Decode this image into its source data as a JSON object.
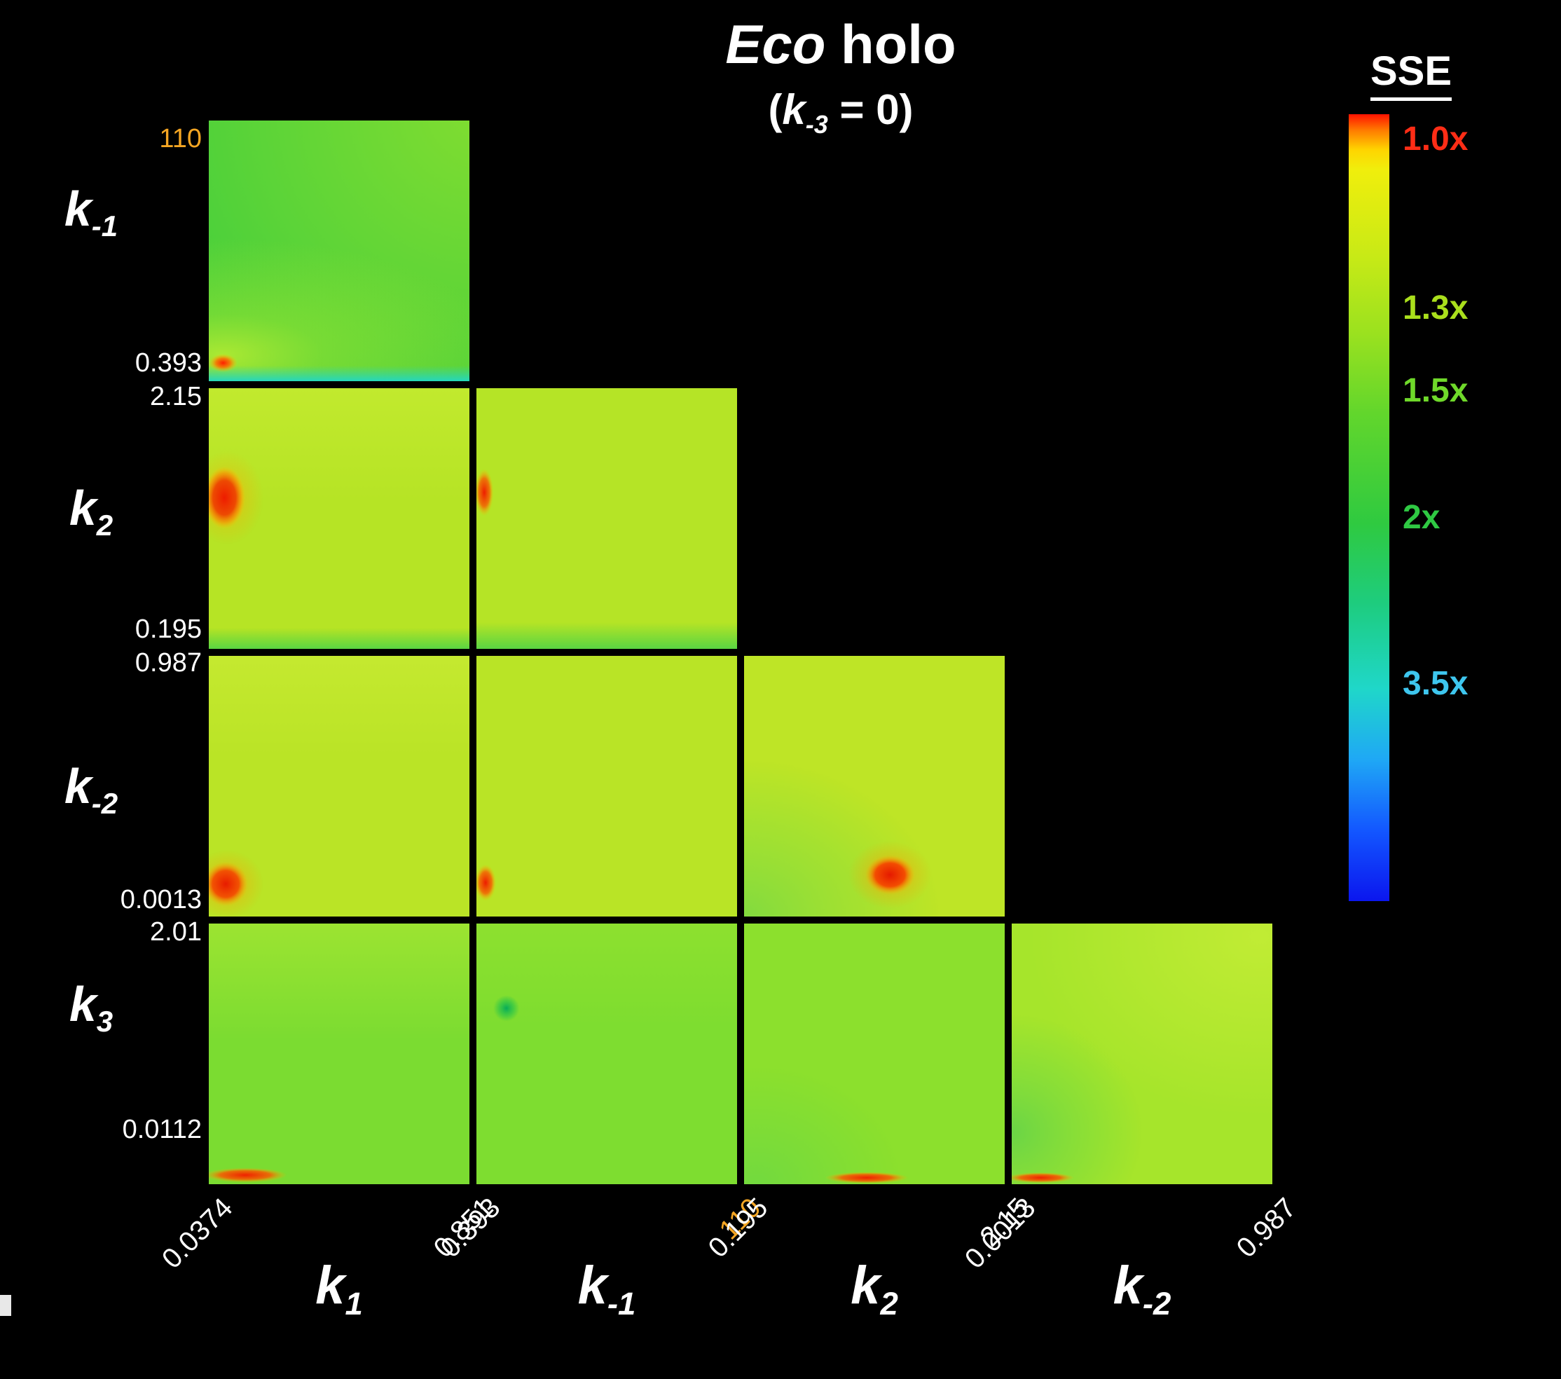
{
  "figure": {
    "title": {
      "italic": "Eco",
      "rest": " holo"
    },
    "subtitle": {
      "open": "(",
      "k": "k",
      "sub": "-3",
      "close": " = 0)"
    }
  },
  "colorbar": {
    "title": "SSE",
    "ticks": [
      {
        "label": "1.0x",
        "pos": 0.032,
        "color": "#ff2d16"
      },
      {
        "label": "1.3x",
        "pos": 0.247,
        "color": "#aadf1c"
      },
      {
        "label": "1.5x",
        "pos": 0.352,
        "color": "#6fd92a"
      },
      {
        "label": "2x",
        "pos": 0.513,
        "color": "#2fc943"
      },
      {
        "label": "3.5x",
        "pos": 0.724,
        "color": "#3ec6ee"
      }
    ],
    "gradient": [
      [
        0.0,
        "#ff1200"
      ],
      [
        0.02,
        "#ff7a00"
      ],
      [
        0.045,
        "#ffd400"
      ],
      [
        0.07,
        "#f0ee0c"
      ],
      [
        0.18,
        "#c8ea16"
      ],
      [
        0.28,
        "#9ae11f"
      ],
      [
        0.38,
        "#62d62c"
      ],
      [
        0.52,
        "#2fca40"
      ],
      [
        0.62,
        "#1ecc7d"
      ],
      [
        0.73,
        "#1fd7c9"
      ],
      [
        0.82,
        "#1fa8f5"
      ],
      [
        0.91,
        "#1357ff"
      ],
      [
        1.0,
        "#0b16ee"
      ]
    ]
  },
  "chart_data": {
    "type": "heatmap",
    "title": "Eco holo (k-3 = 0)",
    "layout": "lower-triangular pairwise parameter corner plot, 4 rows x 4 cols",
    "colorbar_label": "SSE",
    "sse_scale_ticks": [
      "1.0x",
      "1.3x",
      "1.5x",
      "2x",
      "3.5x"
    ],
    "parameters": {
      "k1": {
        "min": 0.0374,
        "max": 0.851
      },
      "k-1": {
        "min": 0.393,
        "max": 110
      },
      "k2": {
        "min": 0.195,
        "max": 2.15
      },
      "k-2": {
        "min": 0.0013,
        "max": 0.987
      },
      "k3": {
        "min": 0.0112,
        "max": 2.01
      }
    },
    "rows": [
      {
        "name": "k-1",
        "base": "k",
        "sub": "-1",
        "ticks": {
          "top": {
            "text": "110",
            "color": "#f5a623"
          },
          "bottom": {
            "text": "0.393",
            "color": "#ffffff"
          }
        }
      },
      {
        "name": "k2",
        "base": "k",
        "sub": "2",
        "ticks": {
          "top": {
            "text": "2.15",
            "color": "#ffffff"
          },
          "bottom": {
            "text": "0.195",
            "color": "#ffffff"
          }
        }
      },
      {
        "name": "k-2",
        "base": "k",
        "sub": "-2",
        "ticks": {
          "top": {
            "text": "0.987",
            "color": "#ffffff"
          },
          "bottom": {
            "text": "0.0013",
            "color": "#ffffff"
          }
        }
      },
      {
        "name": "k3",
        "base": "k",
        "sub": "3",
        "ticks": {
          "top": {
            "text": "2.01",
            "color": "#ffffff"
          },
          "bottom": {
            "text": "0.0112",
            "color": "#ffffff"
          }
        }
      }
    ],
    "cols": [
      {
        "name": "k1",
        "base": "k",
        "sub": "1",
        "ticks": {
          "left": {
            "text": "0.0374",
            "color": "#ffffff"
          },
          "right": {
            "text": "0.851",
            "color": "#ffffff"
          }
        }
      },
      {
        "name": "k-1",
        "base": "k",
        "sub": "-1",
        "ticks": {
          "left": {
            "text": "0.393",
            "color": "#ffffff"
          },
          "right": {
            "text": "110",
            "color": "#f5a623"
          }
        }
      },
      {
        "name": "k2",
        "base": "k",
        "sub": "2",
        "ticks": {
          "left": {
            "text": "0.195",
            "color": "#ffffff"
          },
          "right": {
            "text": "2.15",
            "color": "#ffffff"
          }
        }
      },
      {
        "name": "k-2",
        "base": "k",
        "sub": "-2",
        "ticks": {
          "left": {
            "text": "0.0013",
            "color": "#ffffff"
          },
          "right": {
            "text": "0.987",
            "color": "#ffffff"
          }
        }
      }
    ],
    "panels": [
      {
        "row": 0,
        "col": 0,
        "x_param": "k1",
        "y_param": "k-1",
        "x_range": [
          0.0374,
          0.851
        ],
        "y_range": [
          0.393,
          110
        ],
        "highlight": "red low-SSE minimum at low k1 / low k-1; light yellow-green fan toward upper right; cyan high-SSE strip along bottom edge",
        "layers": [
          {
            "type": "fill",
            "color": "#3ecd3e"
          },
          {
            "type": "radial",
            "cx": 1.05,
            "cy": -0.05,
            "rx": 1.5,
            "ry": 1.5,
            "stops": [
              [
                0,
                "rgba(174,232,40,0.60)"
              ],
              [
                0.6,
                "rgba(174,232,40,0.25)"
              ],
              [
                1,
                "rgba(174,232,40,0)"
              ]
            ]
          },
          {
            "type": "radial",
            "cx": 0.05,
            "cy": 0.9,
            "rx": 1.1,
            "ry": 0.45,
            "stops": [
              [
                0,
                "rgba(190,238,50,0.85)"
              ],
              [
                0.35,
                "rgba(180,235,45,0.40)"
              ],
              [
                1,
                "rgba(180,235,45,0)"
              ]
            ]
          },
          {
            "type": "linear",
            "x1": 0,
            "y1": 1,
            "x2": 0,
            "y2": 0.94,
            "stops": [
              [
                0,
                "rgba(34,216,196,0.95)"
              ],
              [
                0.5,
                "rgba(34,216,196,0.45)"
              ],
              [
                1,
                "rgba(34,216,196,0)"
              ]
            ]
          },
          {
            "type": "radial",
            "cx": 0.055,
            "cy": 0.93,
            "rx": 0.055,
            "ry": 0.035,
            "stops": [
              [
                0,
                "#ff1c00"
              ],
              [
                0.5,
                "rgba(255,110,0,0.85)"
              ],
              [
                1,
                "rgba(255,200,0,0)"
              ]
            ]
          }
        ]
      },
      {
        "row": 1,
        "col": 0,
        "x_param": "k1",
        "y_param": "k2",
        "x_range": [
          0.0374,
          0.851
        ],
        "y_range": [
          0.195,
          2.15
        ],
        "highlight": "red low-SSE blob at low k1 / mid k2; green band along bottom edge",
        "layers": [
          {
            "type": "fill",
            "color": "#b6e425"
          },
          {
            "type": "linear",
            "x1": 0,
            "y1": 0,
            "x2": 0,
            "y2": 1,
            "stops": [
              [
                0,
                "rgba(205,240,55,0.50)"
              ],
              [
                0.45,
                "rgba(205,240,55,0)"
              ],
              [
                0.92,
                "rgba(80,212,70,0)"
              ],
              [
                1,
                "rgba(80,212,70,0.9)"
              ]
            ]
          },
          {
            "type": "radial",
            "cx": 0.07,
            "cy": 0.42,
            "rx": 0.14,
            "ry": 0.18,
            "stops": [
              [
                0,
                "rgba(255,170,0,0.60)"
              ],
              [
                1,
                "rgba(255,170,0,0)"
              ]
            ]
          },
          {
            "type": "radial",
            "cx": 0.06,
            "cy": 0.42,
            "rx": 0.08,
            "ry": 0.12,
            "stops": [
              [
                0,
                "#ee1c00"
              ],
              [
                0.55,
                "rgba(240,60,0,0.9)"
              ],
              [
                0.8,
                "rgba(255,140,0,0.6)"
              ],
              [
                1,
                "rgba(255,200,0,0)"
              ]
            ]
          }
        ]
      },
      {
        "row": 1,
        "col": 1,
        "x_param": "k-1",
        "y_param": "k2",
        "x_range": [
          0.393,
          110
        ],
        "y_range": [
          0.195,
          2.15
        ],
        "highlight": "narrow red low-SSE streak at low k-1 / mid k2; green band along bottom edge",
        "layers": [
          {
            "type": "fill",
            "color": "#b5e426"
          },
          {
            "type": "linear",
            "x1": 0,
            "y1": 0.9,
            "x2": 0,
            "y2": 1,
            "stops": [
              [
                0,
                "rgba(80,212,70,0)"
              ],
              [
                1,
                "rgba(80,212,70,0.9)"
              ]
            ]
          },
          {
            "type": "radial",
            "cx": 0.03,
            "cy": 0.4,
            "rx": 0.035,
            "ry": 0.09,
            "stops": [
              [
                0,
                "#ee1c00"
              ],
              [
                0.6,
                "rgba(250,90,0,0.8)"
              ],
              [
                1,
                "rgba(255,190,0,0)"
              ]
            ]
          }
        ]
      },
      {
        "row": 2,
        "col": 0,
        "x_param": "k1",
        "y_param": "k-2",
        "x_range": [
          0.0374,
          0.851
        ],
        "y_range": [
          0.0013,
          0.987
        ],
        "highlight": "red low-SSE blob at low k1 / low k-2",
        "layers": [
          {
            "type": "fill",
            "color": "#bae426"
          },
          {
            "type": "linear",
            "x1": 0,
            "y1": 0,
            "x2": 0,
            "y2": 1,
            "stops": [
              [
                0,
                "rgba(210,240,60,0.45)"
              ],
              [
                0.4,
                "rgba(210,240,60,0)"
              ],
              [
                1,
                "rgba(0,0,0,0)"
              ]
            ]
          },
          {
            "type": "radial",
            "cx": 0.07,
            "cy": 0.875,
            "rx": 0.14,
            "ry": 0.13,
            "stops": [
              [
                0,
                "rgba(255,160,0,0.65)"
              ],
              [
                1,
                "rgba(255,160,0,0)"
              ]
            ]
          },
          {
            "type": "radial",
            "cx": 0.065,
            "cy": 0.875,
            "rx": 0.085,
            "ry": 0.085,
            "stops": [
              [
                0,
                "#e81c00"
              ],
              [
                0.6,
                "rgba(245,70,0,0.9)"
              ],
              [
                1,
                "rgba(255,180,0,0)"
              ]
            ]
          }
        ]
      },
      {
        "row": 2,
        "col": 1,
        "x_param": "k-1",
        "y_param": "k-2",
        "x_range": [
          0.393,
          110
        ],
        "y_range": [
          0.0013,
          0.987
        ],
        "highlight": "small red low-SSE spot at low k-1 / low k-2",
        "layers": [
          {
            "type": "fill",
            "color": "#b9e426"
          },
          {
            "type": "radial",
            "cx": 0.035,
            "cy": 0.87,
            "rx": 0.04,
            "ry": 0.07,
            "stops": [
              [
                0,
                "#ee1c00"
              ],
              [
                0.6,
                "rgba(250,90,0,0.8)"
              ],
              [
                1,
                "rgba(255,190,0,0)"
              ]
            ]
          }
        ]
      },
      {
        "row": 2,
        "col": 2,
        "x_param": "k2",
        "y_param": "k-2",
        "x_range": [
          0.195,
          2.15
        ],
        "y_range": [
          0.0013,
          0.987
        ],
        "highlight": "red low-SSE blob at mid k2 / low k-2; greener wash in lower-left corner",
        "layers": [
          {
            "type": "fill",
            "color": "#bee526"
          },
          {
            "type": "radial",
            "cx": 0.0,
            "cy": 1.0,
            "rx": 0.75,
            "ry": 0.6,
            "stops": [
              [
                0,
                "rgba(90,212,80,0.6)"
              ],
              [
                0.6,
                "rgba(110,218,70,0.3)"
              ],
              [
                1,
                "rgba(110,218,70,0)"
              ]
            ]
          },
          {
            "type": "radial",
            "cx": 0.56,
            "cy": 0.84,
            "rx": 0.16,
            "ry": 0.13,
            "stops": [
              [
                0,
                "rgba(255,160,0,0.7)"
              ],
              [
                1,
                "rgba(255,160,0,0)"
              ]
            ]
          },
          {
            "type": "radial",
            "cx": 0.56,
            "cy": 0.84,
            "rx": 0.095,
            "ry": 0.075,
            "stops": [
              [
                0,
                "#e61a00"
              ],
              [
                0.6,
                "rgba(245,70,0,0.95)"
              ],
              [
                1,
                "rgba(255,180,0,0)"
              ]
            ]
          }
        ]
      },
      {
        "row": 3,
        "col": 0,
        "x_param": "k1",
        "y_param": "k3",
        "x_range": [
          0.0374,
          0.851
        ],
        "y_range": [
          0.0112,
          2.01
        ],
        "highlight": "thin red low-SSE strip at low k3 along low k1",
        "layers": [
          {
            "type": "fill",
            "color": "#7bdc31"
          },
          {
            "type": "linear",
            "x1": 0,
            "y1": 0,
            "x2": 0,
            "y2": 1,
            "stops": [
              [
                0,
                "rgba(190,236,50,0.5)"
              ],
              [
                0.45,
                "rgba(190,236,50,0)"
              ],
              [
                1,
                "rgba(0,0,0,0)"
              ]
            ]
          },
          {
            "type": "radial",
            "cx": 0.14,
            "cy": 0.965,
            "rx": 0.16,
            "ry": 0.028,
            "stops": [
              [
                0,
                "#f02000"
              ],
              [
                0.6,
                "rgba(250,90,0,0.85)"
              ],
              [
                1,
                "rgba(255,190,0,0)"
              ]
            ]
          }
        ]
      },
      {
        "row": 3,
        "col": 1,
        "x_param": "k-1",
        "y_param": "k3",
        "x_range": [
          0.393,
          110
        ],
        "y_range": [
          0.0112,
          2.01
        ],
        "highlight": "dark-green spot at low k-1 / upper-mid k3",
        "layers": [
          {
            "type": "fill",
            "color": "#7edd30"
          },
          {
            "type": "linear",
            "x1": 0,
            "y1": 0,
            "x2": 0,
            "y2": 1,
            "stops": [
              [
                0,
                "rgba(170,232,45,0.35)"
              ],
              [
                0.4,
                "rgba(170,232,45,0)"
              ],
              [
                1,
                "rgba(0,0,0,0)"
              ]
            ]
          },
          {
            "type": "radial",
            "cx": 0.115,
            "cy": 0.325,
            "rx": 0.05,
            "ry": 0.05,
            "stops": [
              [
                0,
                "rgba(0,168,92,0.95)"
              ],
              [
                0.55,
                "rgba(20,190,80,0.55)"
              ],
              [
                1,
                "rgba(20,190,80,0)"
              ]
            ]
          }
        ]
      },
      {
        "row": 3,
        "col": 2,
        "x_param": "k2",
        "y_param": "k3",
        "x_range": [
          0.195,
          2.15
        ],
        "y_range": [
          0.0112,
          2.01
        ],
        "highlight": "thin red low-SSE strip at low k3 / mid k2; greener lower-left",
        "layers": [
          {
            "type": "fill",
            "color": "#8ce02d"
          },
          {
            "type": "radial",
            "cx": 0.05,
            "cy": 1.0,
            "rx": 0.55,
            "ry": 0.45,
            "stops": [
              [
                0,
                "rgba(90,212,80,0.5)"
              ],
              [
                1,
                "rgba(90,212,80,0)"
              ]
            ]
          },
          {
            "type": "radial",
            "cx": 0.47,
            "cy": 0.975,
            "rx": 0.16,
            "ry": 0.022,
            "stops": [
              [
                0,
                "#f02000"
              ],
              [
                0.6,
                "rgba(250,90,0,0.85)"
              ],
              [
                1,
                "rgba(255,190,0,0)"
              ]
            ]
          }
        ]
      },
      {
        "row": 3,
        "col": 3,
        "x_param": "k-2",
        "y_param": "k3",
        "x_range": [
          0.0013,
          0.987
        ],
        "y_range": [
          0.0112,
          2.01
        ],
        "highlight": "thin red low-SSE strip at low k3 / low k-2; green wash at left, brightest yellow-green toward top right",
        "layers": [
          {
            "type": "fill",
            "color": "#a6e52b"
          },
          {
            "type": "radial",
            "cx": 0.95,
            "cy": 0.05,
            "rx": 0.9,
            "ry": 0.7,
            "stops": [
              [
                0,
                "rgba(215,242,60,0.55)"
              ],
              [
                1,
                "rgba(215,242,60,0)"
              ]
            ]
          },
          {
            "type": "radial",
            "cx": 0.0,
            "cy": 0.8,
            "rx": 0.5,
            "ry": 0.45,
            "stops": [
              [
                0,
                "rgba(75,205,85,0.65)"
              ],
              [
                0.6,
                "rgba(90,212,75,0.3)"
              ],
              [
                1,
                "rgba(90,212,75,0)"
              ]
            ]
          },
          {
            "type": "radial",
            "cx": 0.11,
            "cy": 0.975,
            "rx": 0.13,
            "ry": 0.02,
            "stops": [
              [
                0,
                "#f02000"
              ],
              [
                0.6,
                "rgba(250,90,0,0.85)"
              ],
              [
                1,
                "rgba(255,190,0,0)"
              ]
            ]
          }
        ]
      }
    ]
  }
}
